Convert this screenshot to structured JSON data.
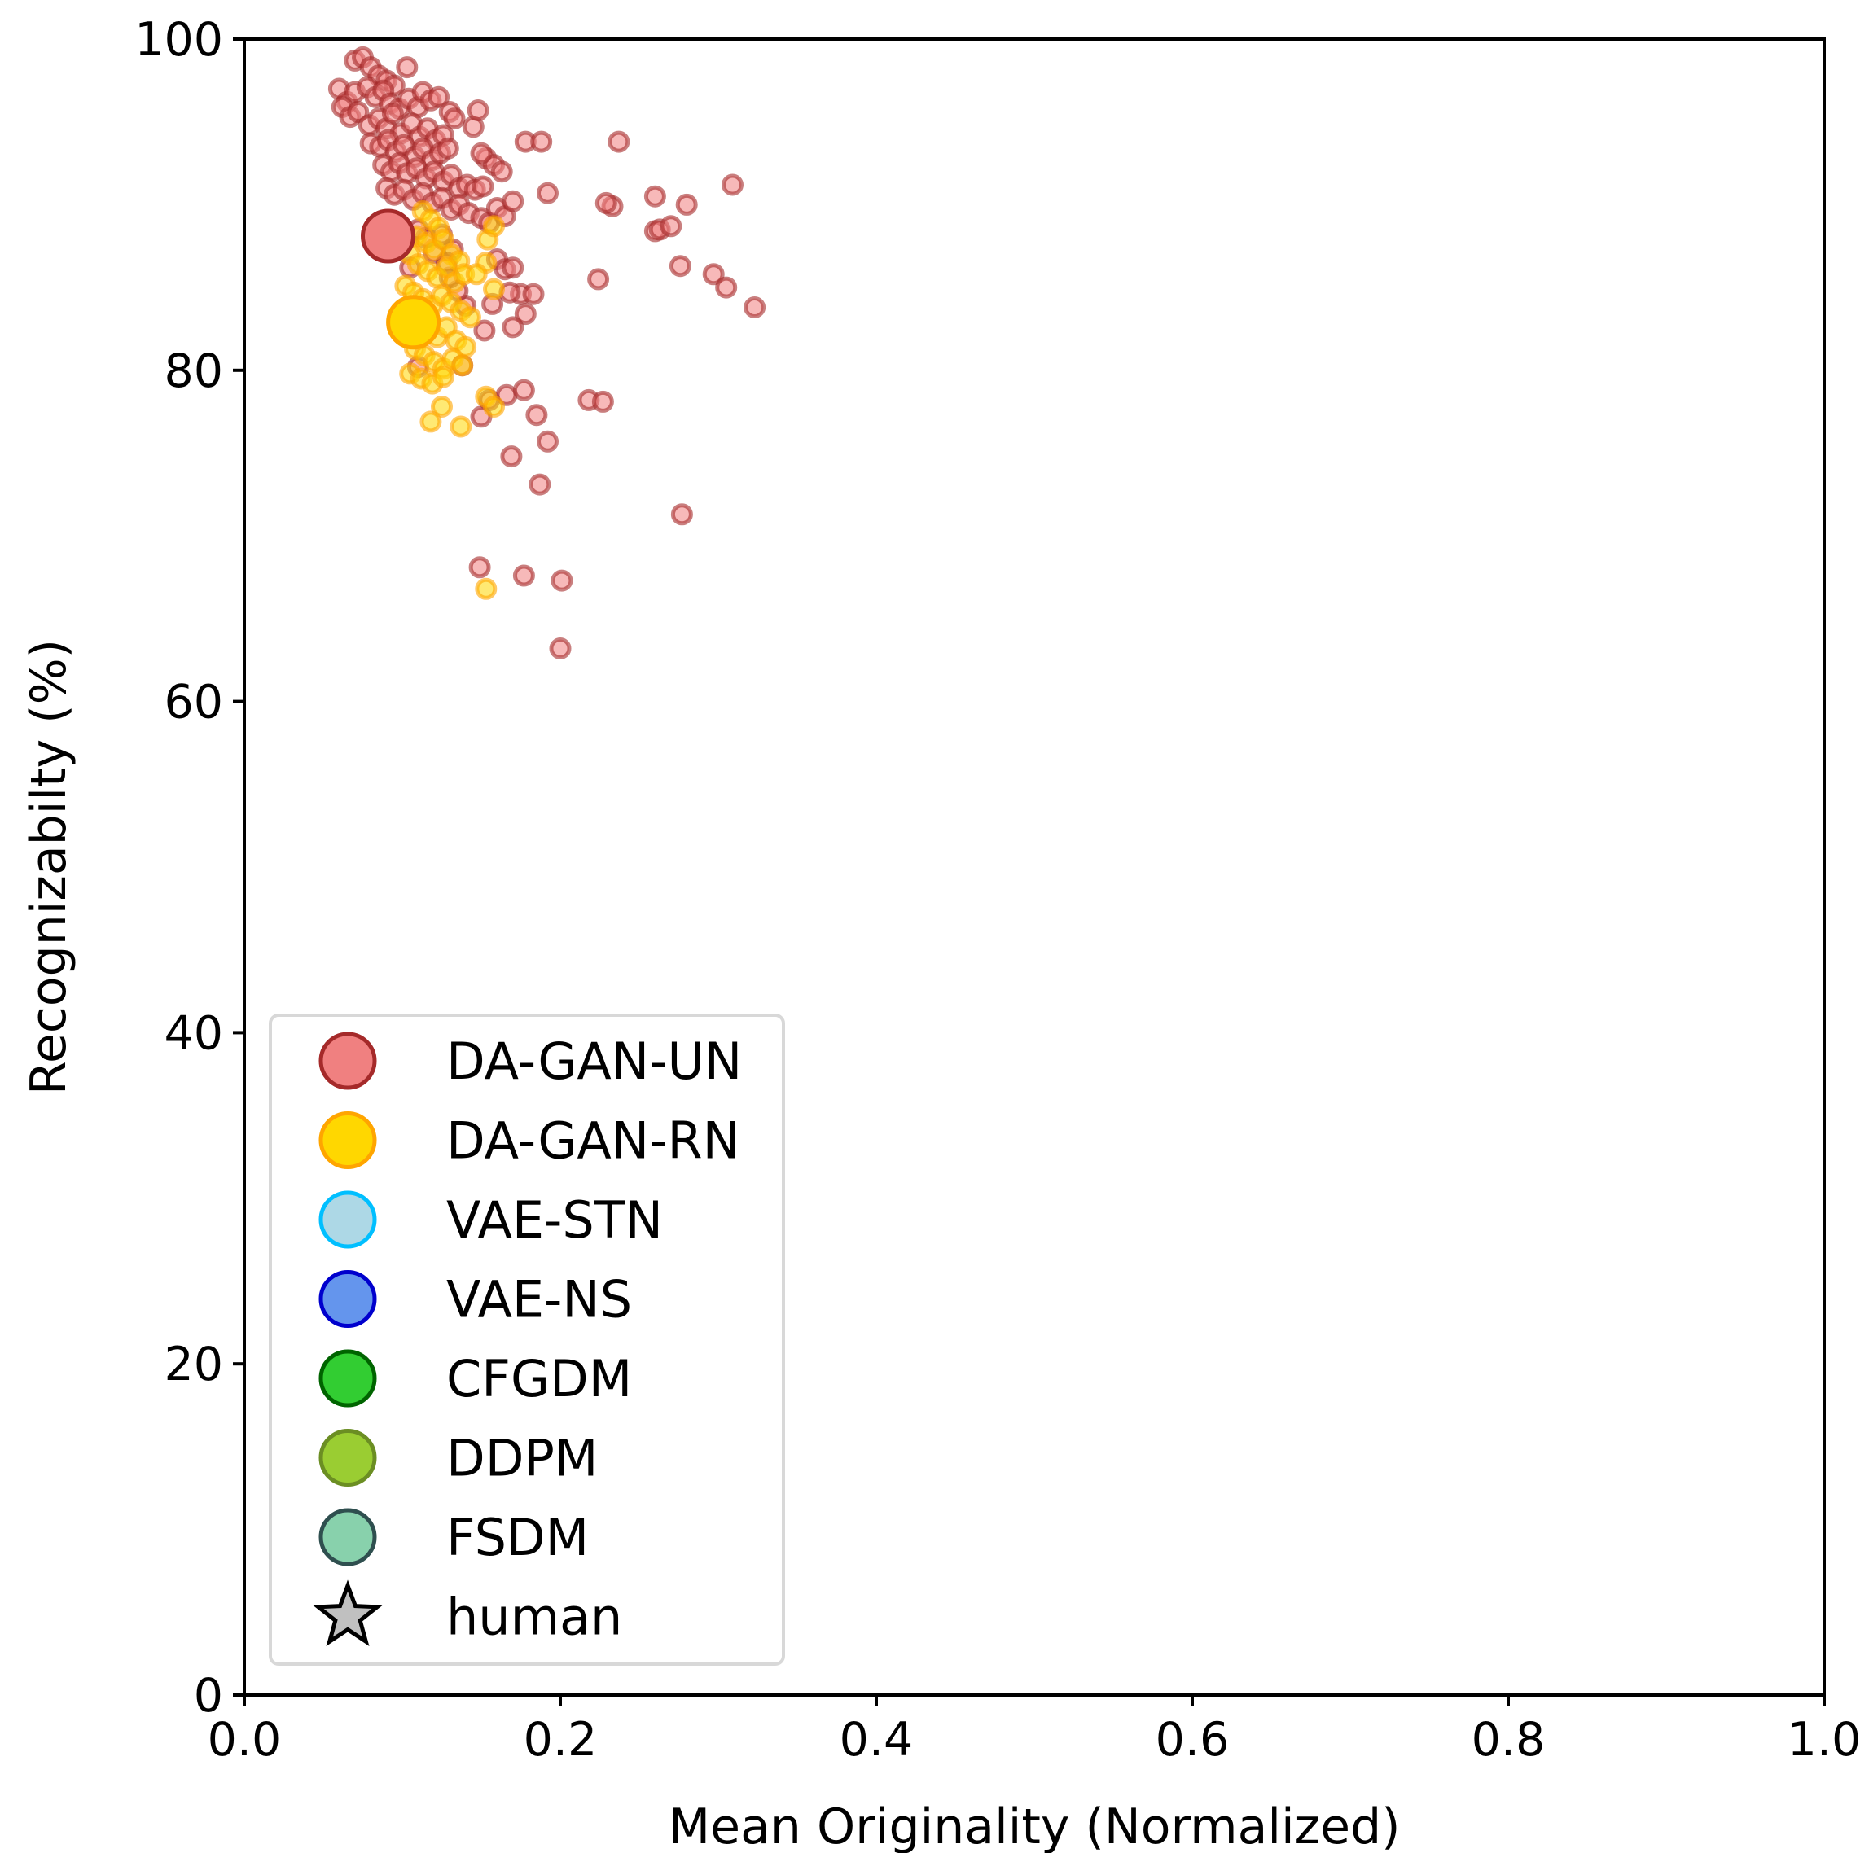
{
  "chart_data": {
    "type": "scatter",
    "title": "",
    "xlabel": "Mean Originality (Normalized)",
    "ylabel": "Recognizabilty (%)",
    "xlim": [
      0.0,
      1.0
    ],
    "ylim": [
      0,
      100
    ],
    "xticks": [
      "0.0",
      "0.2",
      "0.4",
      "0.6",
      "0.8",
      "1.0"
    ],
    "yticks": [
      "0",
      "20",
      "40",
      "60",
      "80",
      "100"
    ],
    "grid": false,
    "legend_position": "lower-left",
    "legend": [
      {
        "label": "DA-GAN-UN",
        "marker": "circle",
        "fill": "#F08080",
        "edge": "#A52A2A"
      },
      {
        "label": "DA-GAN-RN",
        "marker": "circle",
        "fill": "#FFD700",
        "edge": "#FFA500"
      },
      {
        "label": "VAE-STN",
        "marker": "circle",
        "fill": "#ADD8E6",
        "edge": "#00BFFF"
      },
      {
        "label": "VAE-NS",
        "marker": "circle",
        "fill": "#6495ED",
        "edge": "#0000CD"
      },
      {
        "label": "CFGDM",
        "marker": "circle",
        "fill": "#32CD32",
        "edge": "#006400"
      },
      {
        "label": "DDPM",
        "marker": "circle",
        "fill": "#9ACD32",
        "edge": "#6B8E23"
      },
      {
        "label": "FSDM",
        "marker": "circle",
        "fill": "#88D1AC",
        "edge": "#2F4F4F"
      },
      {
        "label": "human",
        "marker": "star",
        "fill": "#C0C0C0",
        "edge": "#000000"
      }
    ],
    "series": [
      {
        "name": "DA-GAN-UN",
        "fill": "#F08080",
        "edge": "#A52A2A",
        "points": [
          [
            0.07,
            98.7
          ],
          [
            0.075,
            98.9
          ],
          [
            0.08,
            98.3
          ],
          [
            0.085,
            97.8
          ],
          [
            0.09,
            97.5
          ],
          [
            0.095,
            97.2
          ],
          [
            0.103,
            98.3
          ],
          [
            0.06,
            97.0
          ],
          [
            0.065,
            96.2
          ],
          [
            0.07,
            96.8
          ],
          [
            0.078,
            97.1
          ],
          [
            0.083,
            96.5
          ],
          [
            0.088,
            96.9
          ],
          [
            0.092,
            96.1
          ],
          [
            0.098,
            95.8
          ],
          [
            0.104,
            96.4
          ],
          [
            0.11,
            95.9
          ],
          [
            0.113,
            96.8
          ],
          [
            0.118,
            96.3
          ],
          [
            0.123,
            96.5
          ],
          [
            0.13,
            95.6
          ],
          [
            0.133,
            95.2
          ],
          [
            0.145,
            94.7
          ],
          [
            0.148,
            95.7
          ],
          [
            0.062,
            95.9
          ],
          [
            0.067,
            95.3
          ],
          [
            0.072,
            95.6
          ],
          [
            0.079,
            94.8
          ],
          [
            0.085,
            95.2
          ],
          [
            0.09,
            94.6
          ],
          [
            0.094,
            95.5
          ],
          [
            0.099,
            94.3
          ],
          [
            0.106,
            94.9
          ],
          [
            0.111,
            94.1
          ],
          [
            0.116,
            94.6
          ],
          [
            0.121,
            93.9
          ],
          [
            0.126,
            94.2
          ],
          [
            0.08,
            93.7
          ],
          [
            0.086,
            93.5
          ],
          [
            0.091,
            93.9
          ],
          [
            0.096,
            93.2
          ],
          [
            0.101,
            93.6
          ],
          [
            0.108,
            92.9
          ],
          [
            0.113,
            93.4
          ],
          [
            0.119,
            92.7
          ],
          [
            0.124,
            93.1
          ],
          [
            0.129,
            93.4
          ],
          [
            0.088,
            92.4
          ],
          [
            0.093,
            92.0
          ],
          [
            0.098,
            92.5
          ],
          [
            0.103,
            91.9
          ],
          [
            0.109,
            92.2
          ],
          [
            0.115,
            91.6
          ],
          [
            0.12,
            92.0
          ],
          [
            0.126,
            91.4
          ],
          [
            0.131,
            91.8
          ],
          [
            0.136,
            91.0
          ],
          [
            0.141,
            91.2
          ],
          [
            0.146,
            90.9
          ],
          [
            0.151,
            91.1
          ],
          [
            0.09,
            91.0
          ],
          [
            0.095,
            90.6
          ],
          [
            0.101,
            90.9
          ],
          [
            0.107,
            90.3
          ],
          [
            0.113,
            90.7
          ],
          [
            0.119,
            90.1
          ],
          [
            0.125,
            90.4
          ],
          [
            0.131,
            89.7
          ],
          [
            0.136,
            90.0
          ],
          [
            0.142,
            89.5
          ],
          [
            0.15,
            89.2
          ],
          [
            0.155,
            88.9
          ],
          [
            0.16,
            89.8
          ],
          [
            0.165,
            89.3
          ],
          [
            0.153,
            92.8
          ],
          [
            0.158,
            92.4
          ],
          [
            0.163,
            92.0
          ],
          [
            0.15,
            93.1
          ],
          [
            0.178,
            93.8
          ],
          [
            0.188,
            93.8
          ],
          [
            0.237,
            93.8
          ],
          [
            0.192,
            90.7
          ],
          [
            0.17,
            90.2
          ],
          [
            0.233,
            89.9
          ],
          [
            0.229,
            90.1
          ],
          [
            0.26,
            90.5
          ],
          [
            0.28,
            90.0
          ],
          [
            0.309,
            91.2
          ],
          [
            0.26,
            88.4
          ],
          [
            0.263,
            88.5
          ],
          [
            0.27,
            88.7
          ],
          [
            0.276,
            86.3
          ],
          [
            0.297,
            85.8
          ],
          [
            0.305,
            85.0
          ],
          [
            0.323,
            83.8
          ],
          [
            0.224,
            85.5
          ],
          [
            0.16,
            86.7
          ],
          [
            0.165,
            86.1
          ],
          [
            0.17,
            86.2
          ],
          [
            0.175,
            84.6
          ],
          [
            0.183,
            84.6
          ],
          [
            0.168,
            84.7
          ],
          [
            0.157,
            84.0
          ],
          [
            0.178,
            83.4
          ],
          [
            0.17,
            82.6
          ],
          [
            0.152,
            82.4
          ],
          [
            0.14,
            83.9
          ],
          [
            0.135,
            84.8
          ],
          [
            0.13,
            85.6
          ],
          [
            0.12,
            87.1
          ],
          [
            0.115,
            88.0
          ],
          [
            0.11,
            88.5
          ],
          [
            0.105,
            86.2
          ],
          [
            0.132,
            87.3
          ],
          [
            0.128,
            86.5
          ],
          [
            0.125,
            88.2
          ],
          [
            0.166,
            78.5
          ],
          [
            0.155,
            78.2
          ],
          [
            0.177,
            78.8
          ],
          [
            0.15,
            77.2
          ],
          [
            0.185,
            77.3
          ],
          [
            0.218,
            78.2
          ],
          [
            0.227,
            78.1
          ],
          [
            0.169,
            74.8
          ],
          [
            0.192,
            75.7
          ],
          [
            0.187,
            73.1
          ],
          [
            0.277,
            71.3
          ],
          [
            0.149,
            68.1
          ],
          [
            0.177,
            67.6
          ],
          [
            0.201,
            67.3
          ],
          [
            0.2,
            63.2
          ],
          [
            0.138,
            80.3
          ],
          [
            0.11,
            80.2
          ]
        ]
      },
      {
        "name": "DA-GAN-RN",
        "fill": "#FFD700",
        "edge": "#FFA500",
        "points": [
          [
            0.113,
            89.6
          ],
          [
            0.118,
            89.1
          ],
          [
            0.123,
            88.6
          ],
          [
            0.109,
            88.1
          ],
          [
            0.115,
            87.7
          ],
          [
            0.12,
            87.3
          ],
          [
            0.126,
            87.9
          ],
          [
            0.131,
            87.0
          ],
          [
            0.136,
            86.6
          ],
          [
            0.105,
            87.0
          ],
          [
            0.11,
            86.4
          ],
          [
            0.116,
            86.0
          ],
          [
            0.122,
            85.6
          ],
          [
            0.128,
            86.2
          ],
          [
            0.133,
            85.3
          ],
          [
            0.139,
            85.8
          ],
          [
            0.102,
            85.1
          ],
          [
            0.107,
            84.7
          ],
          [
            0.113,
            84.3
          ],
          [
            0.119,
            83.9
          ],
          [
            0.125,
            84.5
          ],
          [
            0.131,
            84.1
          ],
          [
            0.137,
            83.6
          ],
          [
            0.143,
            83.2
          ],
          [
            0.104,
            83.3
          ],
          [
            0.11,
            82.8
          ],
          [
            0.116,
            82.4
          ],
          [
            0.122,
            82.0
          ],
          [
            0.128,
            82.6
          ],
          [
            0.134,
            81.8
          ],
          [
            0.14,
            81.4
          ],
          [
            0.108,
            81.3
          ],
          [
            0.114,
            80.9
          ],
          [
            0.12,
            80.5
          ],
          [
            0.126,
            80.1
          ],
          [
            0.132,
            80.7
          ],
          [
            0.138,
            80.3
          ],
          [
            0.105,
            79.8
          ],
          [
            0.112,
            79.5
          ],
          [
            0.119,
            79.2
          ],
          [
            0.126,
            79.6
          ],
          [
            0.153,
            86.5
          ],
          [
            0.147,
            85.8
          ],
          [
            0.158,
            84.9
          ],
          [
            0.154,
            87.9
          ],
          [
            0.158,
            88.7
          ],
          [
            0.153,
            78.4
          ],
          [
            0.158,
            77.8
          ],
          [
            0.125,
            77.8
          ],
          [
            0.118,
            76.9
          ],
          [
            0.137,
            76.6
          ],
          [
            0.153,
            66.8
          ]
        ]
      }
    ],
    "means": [
      {
        "name": "DA-GAN-UN",
        "x": 0.091,
        "y": 88.1
      },
      {
        "name": "DA-GAN-RN",
        "x": 0.107,
        "y": 82.9
      }
    ]
  }
}
